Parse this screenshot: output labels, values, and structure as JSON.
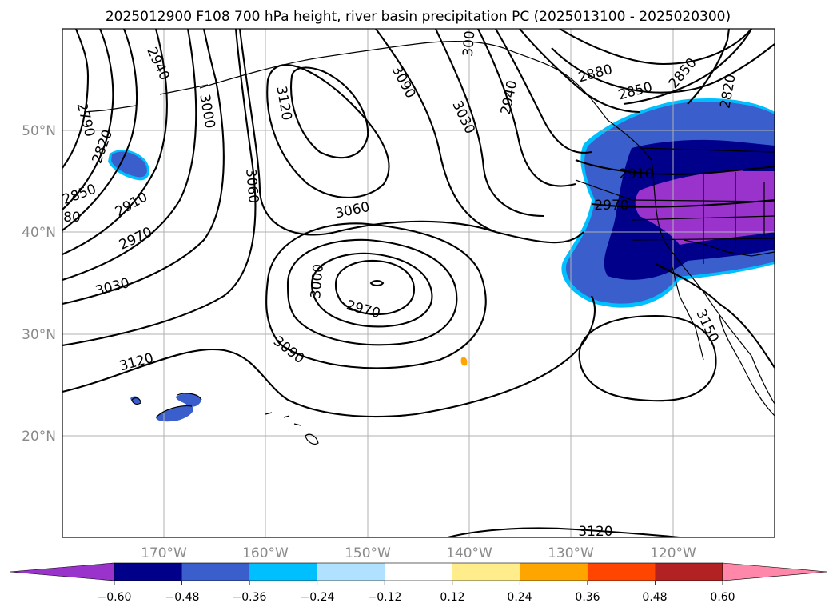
{
  "title": "2025012900 F108 700 hPa height, river basin precipitation PC (2025013100 - 2025020300)",
  "axes": {
    "lon_labels": [
      "170°W",
      "160°W",
      "150°W",
      "140°W",
      "130°W",
      "120°W"
    ],
    "lat_labels": [
      "50°N",
      "40°N",
      "30°N",
      "20°N"
    ]
  },
  "contour_labels": [
    "2940",
    "2790",
    "2820",
    "2850",
    "80",
    "2910",
    "2970",
    "3030",
    "3120",
    "3000",
    "3060",
    "3060",
    "3120",
    "3090",
    "3030",
    "3000",
    "2970",
    "3090",
    "300",
    "2940",
    "2880",
    "2850",
    "2850",
    "2820",
    "2910",
    "2970",
    "3150",
    "3120"
  ],
  "colorbar": {
    "colors": [
      "#9933cc",
      "#00008b",
      "#3a5fcd",
      "#00bfff",
      "#b0e2ff",
      "#ffffff",
      "#ffec8b",
      "#ffa500",
      "#ff4500",
      "#b22222",
      "#ff88aa"
    ],
    "ticks": [
      "−0.60",
      "−0.48",
      "−0.36",
      "−0.24",
      "−0.12",
      "0.12",
      "0.24",
      "0.36",
      "0.48",
      "0.60"
    ]
  }
}
